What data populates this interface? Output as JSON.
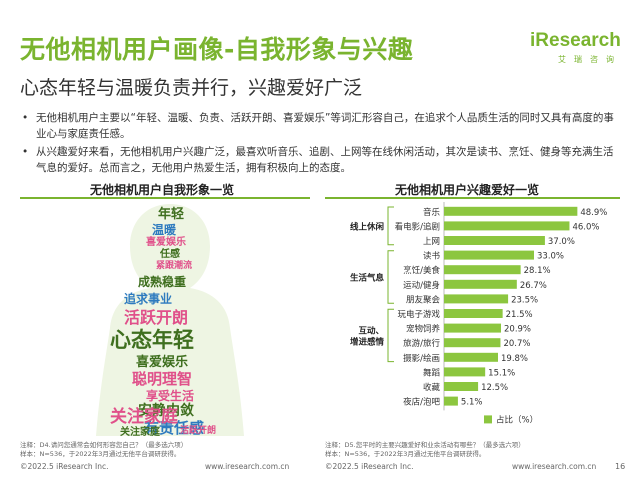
{
  "header": {
    "title": "无他相机用户画像-自我形象与兴趣",
    "subtitle": "心态年轻与温暖负责并行，兴趣爱好广泛"
  },
  "logo": {
    "mark": "iResearch",
    "sub": "艾瑞咨询"
  },
  "colors": {
    "accent": "#7ab42f",
    "bar": "#8cc63f",
    "cloud_dark": "#3f6f1f",
    "cloud_pink": "#e0508a",
    "cloud_blue": "#2e7bbf"
  },
  "bullets": [
    "无他相机用户主要以“年轻、温暖、负责、活跃开朗、喜爱娱乐”等词汇形容自己，在追求个人品质生活的同时又具有高度的事业心与家庭责任感。",
    "从兴趣爱好来看，无他相机用户兴趣广泛，最喜欢听音乐、追剧、上网等在线休闲活动，其次是读书、烹饪、健身等充满生活气息的爱好。总而言之，无他用户热爱生活，拥有积极向上的态度。"
  ],
  "cloud_panel": {
    "title": "无他相机用户自我形象一览",
    "words": [
      "年轻",
      "温暖",
      "喜爱娱乐",
      "任感",
      "紧跟潮流",
      "成熟稳重",
      "追求事业",
      "活跃开朗",
      "心态年轻",
      "喜爱娱乐",
      "聪明理智",
      "享受生活",
      "安静内敛",
      "有责任感",
      "关注家庭",
      "关注家庭",
      "活跃开朗"
    ],
    "note": "注释：D4.请问您通常会如何形容您自己？（最多选六项）\n样本：N=536，于2022年3月通过无他平台调研获得。"
  },
  "chart_panel": {
    "title": "无他相机用户兴趣爱好一览",
    "note": "注释：D5.您平时的主要兴趣爱好和业余活动有哪些？（最多选六项）\n样本：N=536，于2022年3月通过无他平台调研获得。"
  },
  "chart_data": {
    "type": "bar",
    "orientation": "horizontal",
    "categories": [
      "音乐",
      "看电影/追剧",
      "上网",
      "读书",
      "烹饪/美食",
      "运动/健身",
      "朋友聚会",
      "玩电子游戏",
      "宠物饲养",
      "旅游/旅行",
      "摄影/绘画",
      "舞蹈",
      "收藏",
      "夜店/泡吧"
    ],
    "values": [
      48.9,
      46.0,
      37.0,
      33.0,
      28.1,
      26.7,
      23.5,
      21.5,
      20.9,
      20.7,
      19.8,
      15.1,
      12.5,
      5.1
    ],
    "value_labels": [
      "48.9%",
      "46.0%",
      "37.0%",
      "33.0%",
      "28.1%",
      "26.7%",
      "23.5%",
      "21.5%",
      "20.9%",
      "20.7%",
      "19.8%",
      "15.1%",
      "12.5%",
      "5.1%"
    ],
    "groups": [
      {
        "label": "线上休闲",
        "count": 3
      },
      {
        "label": "生活气息",
        "count": 4
      },
      {
        "label": "互动、\n增进感情",
        "count": 4
      }
    ],
    "legend": "占比（%）",
    "xlim": [
      0,
      55
    ],
    "grid": false,
    "legend_position": "bottom"
  },
  "footer": {
    "left_copyright": "©2022.5 iResearch Inc.",
    "left_url": "www.iresearch.com.cn",
    "right_copyright": "©2022.5 iResearch Inc.",
    "right_url": "www.iresearch.com.cn",
    "page": "16"
  }
}
